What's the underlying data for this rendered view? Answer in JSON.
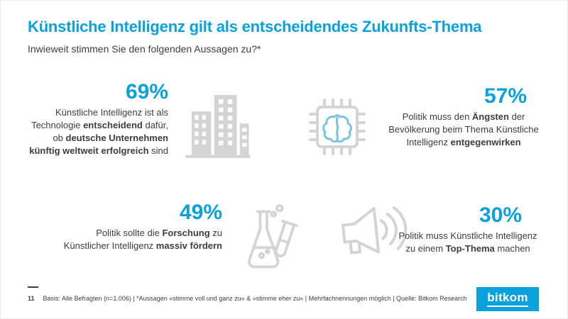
{
  "colors": {
    "accent": "#0aa1dc",
    "icon_gray": "#d4d4d4",
    "chip_brain": "#79c3e6",
    "text": "#3d3d3d"
  },
  "slide": {
    "title": "Künstliche Intelligenz gilt als entscheidendes Zukunfts-Thema",
    "subtitle": "Inwieweit stimmen Sie den folgenden Aussagen zu?*"
  },
  "stats": [
    {
      "percent": "69%",
      "icon": "buildings-icon",
      "segments": [
        {
          "text": "Künstliche Intelligenz ist als Technologie ",
          "bold": false
        },
        {
          "text": "entscheidend",
          "bold": true
        },
        {
          "text": " dafür, ob ",
          "bold": false
        },
        {
          "text": "deutsche Unternehmen künftig weltweit erfolgreich",
          "bold": true
        },
        {
          "text": " sind",
          "bold": false
        }
      ]
    },
    {
      "percent": "57%",
      "icon": "chip-brain-icon",
      "segments": [
        {
          "text": "Politik muss den ",
          "bold": false
        },
        {
          "text": "Ängsten",
          "bold": true
        },
        {
          "text": " der Bevölkerung beim Thema Künstliche Intelligenz ",
          "bold": false
        },
        {
          "text": "entgegenwirken",
          "bold": true
        }
      ]
    },
    {
      "percent": "49%",
      "icon": "flask-icon",
      "segments": [
        {
          "text": "Politik sollte die ",
          "bold": false
        },
        {
          "text": "Forschung",
          "bold": true
        },
        {
          "text": " zu Künstlicher Intelligenz ",
          "bold": false
        },
        {
          "text": "massiv fördern",
          "bold": true
        }
      ]
    },
    {
      "percent": "30%",
      "icon": "megaphone-icon",
      "segments": [
        {
          "text": "Politik muss Künstliche Intelligenz zu einem ",
          "bold": false
        },
        {
          "text": "Top-Thema",
          "bold": true
        },
        {
          "text": " machen",
          "bold": false
        }
      ]
    }
  ],
  "footer": {
    "page_number": "11",
    "text": "Basis: Alle Befragten (n=1.006) | *Aussagen »stimme voll und ganz zu« & »stimme eher zu« | Mehrfachnennungen möglich | Quelle: Bitkom Research",
    "logo_text": "bitkom"
  },
  "chart_data": {
    "type": "table",
    "title": "Künstliche Intelligenz gilt als entscheidendes Zukunfts-Thema",
    "subtitle": "Inwieweit stimmen Sie den folgenden Aussagen zu?*",
    "unit": "%",
    "categories": [
      "Künstliche Intelligenz ist als Technologie entscheidend dafür, ob deutsche Unternehmen künftig weltweit erfolgreich sind",
      "Politik muss den Ängsten der Bevölkerung beim Thema Künstliche Intelligenz entgegenwirken",
      "Politik sollte die Forschung zu Künstlicher Intelligenz massiv fördern",
      "Politik muss Künstliche Intelligenz zu einem Top-Thema machen"
    ],
    "values": [
      69,
      57,
      49,
      30
    ],
    "base": "Alle Befragten (n=1.006)",
    "source": "Bitkom Research"
  }
}
